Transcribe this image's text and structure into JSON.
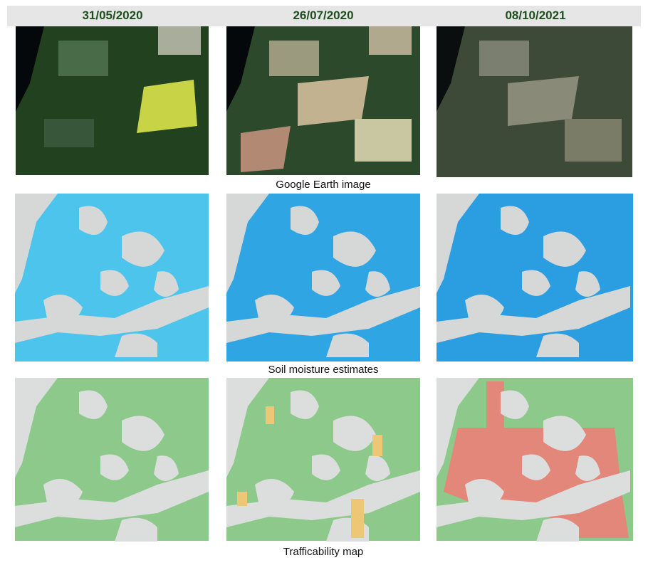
{
  "header": {
    "dates": [
      "31/05/2020",
      "26/07/2020",
      "08/10/2021"
    ]
  },
  "captions": [
    "Google Earth image",
    "Soil moisture estimates",
    "Trafficability map"
  ]
}
